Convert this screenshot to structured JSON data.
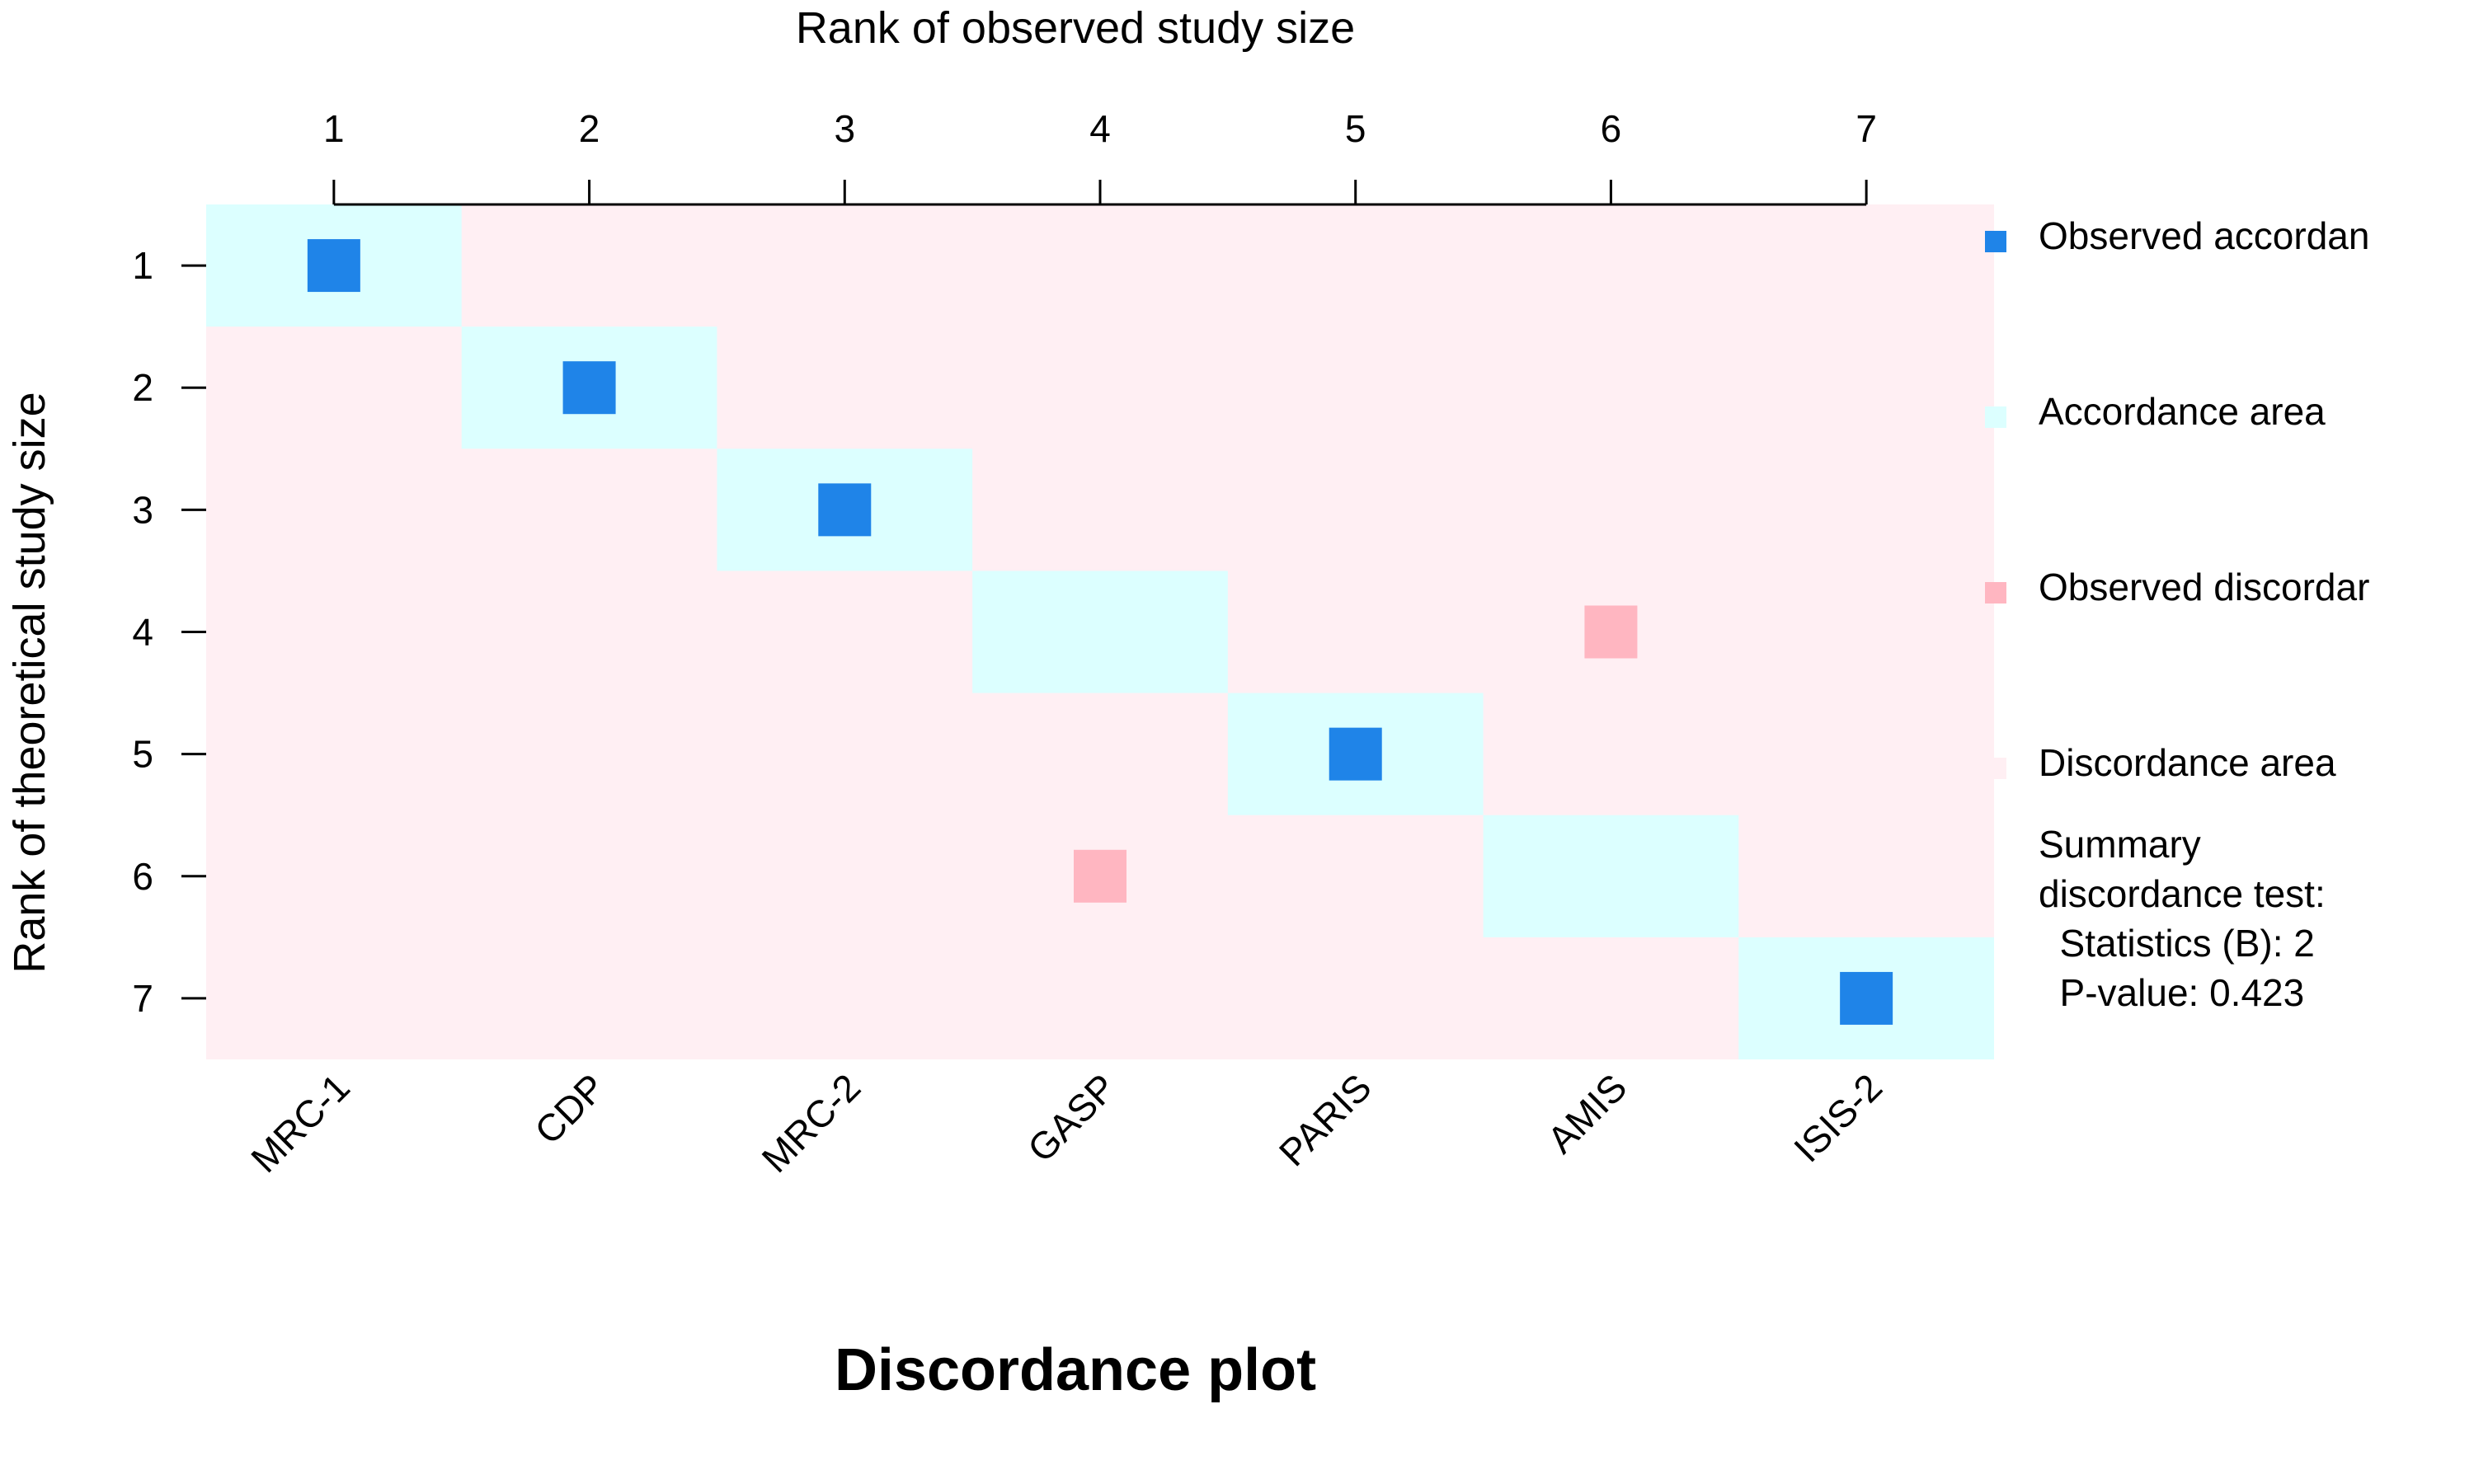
{
  "chart_data": {
    "type": "heatmap",
    "title": "Discordance plot",
    "xlabel": "Rank of observed study size",
    "ylabel": "Rank of theoretical study size",
    "x_ticks": [
      "1",
      "2",
      "3",
      "4",
      "5",
      "6",
      "7"
    ],
    "y_ticks": [
      "1",
      "2",
      "3",
      "4",
      "5",
      "6",
      "7"
    ],
    "studies": [
      "MRC-1",
      "CDP",
      "MRC-2",
      "GASP",
      "PARIS",
      "AMIS",
      "ISIS-2"
    ],
    "accordance_area": [
      {
        "theoretical_rank": 1,
        "observed_rank_from": 1,
        "observed_rank_to": 1
      },
      {
        "theoretical_rank": 2,
        "observed_rank_from": 2,
        "observed_rank_to": 2
      },
      {
        "theoretical_rank": 3,
        "observed_rank_from": 3,
        "observed_rank_to": 3
      },
      {
        "theoretical_rank": 4,
        "observed_rank_from": 4,
        "observed_rank_to": 4
      },
      {
        "theoretical_rank": 5,
        "observed_rank_from": 5,
        "observed_rank_to": 5
      },
      {
        "theoretical_rank": 6,
        "observed_rank_from": 6,
        "observed_rank_to": 6
      },
      {
        "theoretical_rank": 7,
        "observed_rank_from": 7,
        "observed_rank_to": 7
      }
    ],
    "points": [
      {
        "study": "MRC-1",
        "observed_rank": 1,
        "theoretical_rank": 1,
        "status": "accordant"
      },
      {
        "study": "CDP",
        "observed_rank": 2,
        "theoretical_rank": 2,
        "status": "accordant"
      },
      {
        "study": "MRC-2",
        "observed_rank": 3,
        "theoretical_rank": 3,
        "status": "accordant"
      },
      {
        "study": "GASP",
        "observed_rank": 4,
        "theoretical_rank": 6,
        "status": "discordant"
      },
      {
        "study": "PARIS",
        "observed_rank": 5,
        "theoretical_rank": 5,
        "status": "accordant"
      },
      {
        "study": "AMIS",
        "observed_rank": 6,
        "theoretical_rank": 4,
        "status": "discordant"
      },
      {
        "study": "ISIS-2",
        "observed_rank": 7,
        "theoretical_rank": 7,
        "status": "accordant"
      }
    ],
    "colors": {
      "accordant_point": "#1f84e8",
      "accordance_area": "#dcffff",
      "discordant_point": "#ffb6c1",
      "discordance_area": "#ffeff3",
      "axis": "#000000"
    },
    "legend": {
      "placement": "right",
      "items": [
        {
          "label": "Observed accordan",
          "color": "#1f84e8"
        },
        {
          "label": "Accordance area",
          "color": "#dcffff"
        },
        {
          "label": "Observed discordar",
          "color": "#ffb6c1"
        },
        {
          "label": "Discordance area",
          "color": "#ffeff3"
        }
      ]
    },
    "summary_lines": [
      "Summary",
      "discordance test:",
      " Statistics (B): 2",
      " P-value: 0.423"
    ]
  }
}
